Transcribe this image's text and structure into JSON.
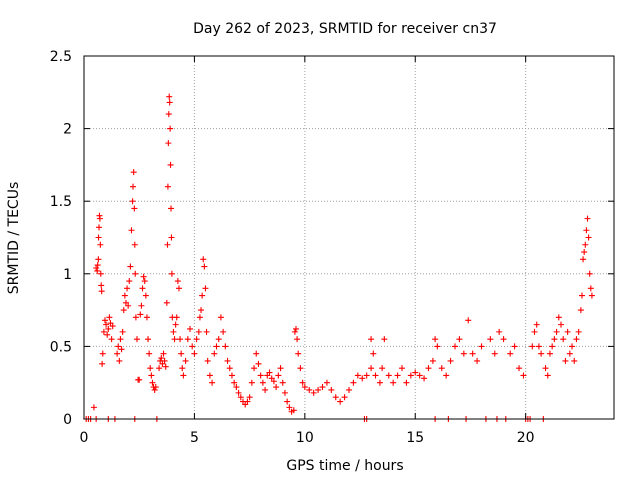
{
  "chart_data": {
    "type": "scatter",
    "title": "Day 262 of 2023, SRMTID for receiver cn37",
    "xlabel": "GPS time / hours",
    "ylabel": "SRMTID / TECUs",
    "xlim": [
      0,
      24
    ],
    "ylim": [
      0,
      2.5
    ],
    "xticks": [
      0,
      5,
      10,
      15,
      20
    ],
    "xtick_labels": [
      "0",
      "5",
      "10",
      "15",
      "20"
    ],
    "yticks": [
      0,
      0.5,
      1,
      1.5,
      2,
      2.5
    ],
    "ytick_labels": [
      "0",
      "0.5",
      "1",
      "1.5",
      "2",
      "2.5"
    ],
    "grid": true,
    "marker": "+",
    "series": [
      {
        "name": "SRMTID",
        "color": "#ff0000",
        "points": [
          [
            0.1,
            0.0
          ],
          [
            0.2,
            0.0
          ],
          [
            0.3,
            0.0
          ],
          [
            0.45,
            0.08
          ],
          [
            0.55,
            0.0
          ],
          [
            0.55,
            1.04
          ],
          [
            0.6,
            1.02
          ],
          [
            0.62,
            1.06
          ],
          [
            0.65,
            1.1
          ],
          [
            0.66,
            1.25
          ],
          [
            0.68,
            1.32
          ],
          [
            0.7,
            1.4
          ],
          [
            0.72,
            1.38
          ],
          [
            0.74,
            1.2
          ],
          [
            0.76,
            1.0
          ],
          [
            0.78,
            0.92
          ],
          [
            0.8,
            0.88
          ],
          [
            0.82,
            0.38
          ],
          [
            0.85,
            0.45
          ],
          [
            0.9,
            0.6
          ],
          [
            0.95,
            0.68
          ],
          [
            1.0,
            0.65
          ],
          [
            1.05,
            0.58
          ],
          [
            1.1,
            0.62
          ],
          [
            1.15,
            0.7
          ],
          [
            1.2,
            0.66
          ],
          [
            1.25,
            0.55
          ],
          [
            1.3,
            0.64
          ],
          [
            1.1,
            0.0
          ],
          [
            1.4,
            0.0
          ],
          [
            1.5,
            0.45
          ],
          [
            1.55,
            0.5
          ],
          [
            1.6,
            0.4
          ],
          [
            1.65,
            0.55
          ],
          [
            1.7,
            0.48
          ],
          [
            1.75,
            0.6
          ],
          [
            1.8,
            0.75
          ],
          [
            1.85,
            0.85
          ],
          [
            1.9,
            0.8
          ],
          [
            1.95,
            0.9
          ],
          [
            2.0,
            0.78
          ],
          [
            2.05,
            0.95
          ],
          [
            2.1,
            1.05
          ],
          [
            2.15,
            1.3
          ],
          [
            2.2,
            1.5
          ],
          [
            2.22,
            1.6
          ],
          [
            2.25,
            1.7
          ],
          [
            2.28,
            1.45
          ],
          [
            2.3,
            1.2
          ],
          [
            2.32,
            1.0
          ],
          [
            2.35,
            0.7
          ],
          [
            2.4,
            0.55
          ],
          [
            2.3,
            0.0
          ],
          [
            2.45,
            0.27
          ],
          [
            2.5,
            0.27
          ],
          [
            2.55,
            0.72
          ],
          [
            2.6,
            0.78
          ],
          [
            2.65,
            0.9
          ],
          [
            2.7,
            0.98
          ],
          [
            2.75,
            0.95
          ],
          [
            2.8,
            0.85
          ],
          [
            2.85,
            0.7
          ],
          [
            2.9,
            0.55
          ],
          [
            2.95,
            0.45
          ],
          [
            3.0,
            0.35
          ],
          [
            3.05,
            0.3
          ],
          [
            3.1,
            0.25
          ],
          [
            3.15,
            0.22
          ],
          [
            3.2,
            0.2
          ],
          [
            3.25,
            0.22
          ],
          [
            3.3,
            0.0
          ],
          [
            3.4,
            0.35
          ],
          [
            3.45,
            0.4
          ],
          [
            3.5,
            0.42
          ],
          [
            3.55,
            0.38
          ],
          [
            3.6,
            0.45
          ],
          [
            3.65,
            0.4
          ],
          [
            3.7,
            0.36
          ],
          [
            3.75,
            0.8
          ],
          [
            3.78,
            1.2
          ],
          [
            3.8,
            1.6
          ],
          [
            3.82,
            1.9
          ],
          [
            3.84,
            2.1
          ],
          [
            3.86,
            2.22
          ],
          [
            3.88,
            2.18
          ],
          [
            3.9,
            2.0
          ],
          [
            3.92,
            1.75
          ],
          [
            3.94,
            1.45
          ],
          [
            3.96,
            1.25
          ],
          [
            3.98,
            1.0
          ],
          [
            4.0,
            0.7
          ],
          [
            4.05,
            0.6
          ],
          [
            4.1,
            0.55
          ],
          [
            4.15,
            0.65
          ],
          [
            4.2,
            0.7
          ],
          [
            4.25,
            0.95
          ],
          [
            4.3,
            0.9
          ],
          [
            4.35,
            0.55
          ],
          [
            4.4,
            0.45
          ],
          [
            4.45,
            0.35
          ],
          [
            4.5,
            0.3
          ],
          [
            4.6,
            0.4
          ],
          [
            4.7,
            0.55
          ],
          [
            4.8,
            0.62
          ],
          [
            4.9,
            0.5
          ],
          [
            5.0,
            0.45
          ],
          [
            5.1,
            0.55
          ],
          [
            5.2,
            0.6
          ],
          [
            5.25,
            0.7
          ],
          [
            5.3,
            0.75
          ],
          [
            5.35,
            0.85
          ],
          [
            5.4,
            1.1
          ],
          [
            5.45,
            1.05
          ],
          [
            5.5,
            0.9
          ],
          [
            5.55,
            0.6
          ],
          [
            5.6,
            0.4
          ],
          [
            5.7,
            0.3
          ],
          [
            5.8,
            0.25
          ],
          [
            5.9,
            0.45
          ],
          [
            6.0,
            0.5
          ],
          [
            6.1,
            0.55
          ],
          [
            6.2,
            0.7
          ],
          [
            6.3,
            0.6
          ],
          [
            6.4,
            0.5
          ],
          [
            6.5,
            0.4
          ],
          [
            6.6,
            0.35
          ],
          [
            6.7,
            0.3
          ],
          [
            6.8,
            0.25
          ],
          [
            6.9,
            0.22
          ],
          [
            7.0,
            0.18
          ],
          [
            7.1,
            0.15
          ],
          [
            7.2,
            0.12
          ],
          [
            7.3,
            0.1
          ],
          [
            7.4,
            0.12
          ],
          [
            7.5,
            0.15
          ],
          [
            7.6,
            0.25
          ],
          [
            7.7,
            0.35
          ],
          [
            7.8,
            0.45
          ],
          [
            7.9,
            0.38
          ],
          [
            8.0,
            0.3
          ],
          [
            8.1,
            0.25
          ],
          [
            8.2,
            0.2
          ],
          [
            8.3,
            0.3
          ],
          [
            8.4,
            0.32
          ],
          [
            8.5,
            0.28
          ],
          [
            8.6,
            0.26
          ],
          [
            8.7,
            0.22
          ],
          [
            8.8,
            0.3
          ],
          [
            8.9,
            0.35
          ],
          [
            9.0,
            0.25
          ],
          [
            9.1,
            0.18
          ],
          [
            9.2,
            0.12
          ],
          [
            9.3,
            0.08
          ],
          [
            9.4,
            0.05
          ],
          [
            9.5,
            0.06
          ],
          [
            9.55,
            0.6
          ],
          [
            9.6,
            0.62
          ],
          [
            9.65,
            0.55
          ],
          [
            9.7,
            0.45
          ],
          [
            9.8,
            0.35
          ],
          [
            9.9,
            0.25
          ],
          [
            10.0,
            0.22
          ],
          [
            10.2,
            0.2
          ],
          [
            10.4,
            0.18
          ],
          [
            10.6,
            0.2
          ],
          [
            10.8,
            0.22
          ],
          [
            11.0,
            0.25
          ],
          [
            11.2,
            0.2
          ],
          [
            11.4,
            0.15
          ],
          [
            11.6,
            0.12
          ],
          [
            11.8,
            0.15
          ],
          [
            12.0,
            0.2
          ],
          [
            12.2,
            0.25
          ],
          [
            12.4,
            0.3
          ],
          [
            12.6,
            0.28
          ],
          [
            12.8,
            0.3
          ],
          [
            13.0,
            0.35
          ],
          [
            12.7,
            0.0
          ],
          [
            12.8,
            0.0
          ],
          [
            13.0,
            0.55
          ],
          [
            13.1,
            0.45
          ],
          [
            13.2,
            0.3
          ],
          [
            13.4,
            0.25
          ],
          [
            13.5,
            0.35
          ],
          [
            13.6,
            0.55
          ],
          [
            13.8,
            0.3
          ],
          [
            14.0,
            0.25
          ],
          [
            14.2,
            0.3
          ],
          [
            14.4,
            0.35
          ],
          [
            14.6,
            0.25
          ],
          [
            14.8,
            0.3
          ],
          [
            15.0,
            0.32
          ],
          [
            15.2,
            0.3
          ],
          [
            15.4,
            0.28
          ],
          [
            15.6,
            0.35
          ],
          [
            15.8,
            0.4
          ],
          [
            15.9,
            0.0
          ],
          [
            15.9,
            0.55
          ],
          [
            16.0,
            0.5
          ],
          [
            16.2,
            0.35
          ],
          [
            16.4,
            0.3
          ],
          [
            16.5,
            0.0
          ],
          [
            16.6,
            0.4
          ],
          [
            16.8,
            0.5
          ],
          [
            17.0,
            0.55
          ],
          [
            17.2,
            0.45
          ],
          [
            17.3,
            0.0
          ],
          [
            17.4,
            0.68
          ],
          [
            17.6,
            0.45
          ],
          [
            17.8,
            0.4
          ],
          [
            18.0,
            0.5
          ],
          [
            18.2,
            0.0
          ],
          [
            18.4,
            0.55
          ],
          [
            18.6,
            0.45
          ],
          [
            18.7,
            0.0
          ],
          [
            18.8,
            0.6
          ],
          [
            19.0,
            0.55
          ],
          [
            19.1,
            0.0
          ],
          [
            19.3,
            0.45
          ],
          [
            19.5,
            0.5
          ],
          [
            19.7,
            0.35
          ],
          [
            19.9,
            0.3
          ],
          [
            20.0,
            0.0
          ],
          [
            20.1,
            0.0
          ],
          [
            20.2,
            0.0
          ],
          [
            20.3,
            0.5
          ],
          [
            20.4,
            0.6
          ],
          [
            20.5,
            0.65
          ],
          [
            20.6,
            0.5
          ],
          [
            20.7,
            0.45
          ],
          [
            20.8,
            0.0
          ],
          [
            20.9,
            0.35
          ],
          [
            21.0,
            0.3
          ],
          [
            21.1,
            0.45
          ],
          [
            21.2,
            0.5
          ],
          [
            21.3,
            0.55
          ],
          [
            21.4,
            0.6
          ],
          [
            21.5,
            0.7
          ],
          [
            21.6,
            0.65
          ],
          [
            21.7,
            0.55
          ],
          [
            21.8,
            0.4
          ],
          [
            21.9,
            0.6
          ],
          [
            22.0,
            0.45
          ],
          [
            22.1,
            0.5
          ],
          [
            22.2,
            0.4
          ],
          [
            22.3,
            0.55
          ],
          [
            22.4,
            0.6
          ],
          [
            22.5,
            0.75
          ],
          [
            22.55,
            0.85
          ],
          [
            22.6,
            1.1
          ],
          [
            22.65,
            1.15
          ],
          [
            22.7,
            1.2
          ],
          [
            22.75,
            1.3
          ],
          [
            22.8,
            1.38
          ],
          [
            22.85,
            1.25
          ],
          [
            22.9,
            1.0
          ],
          [
            22.95,
            0.9
          ],
          [
            23.0,
            0.85
          ]
        ]
      }
    ]
  }
}
